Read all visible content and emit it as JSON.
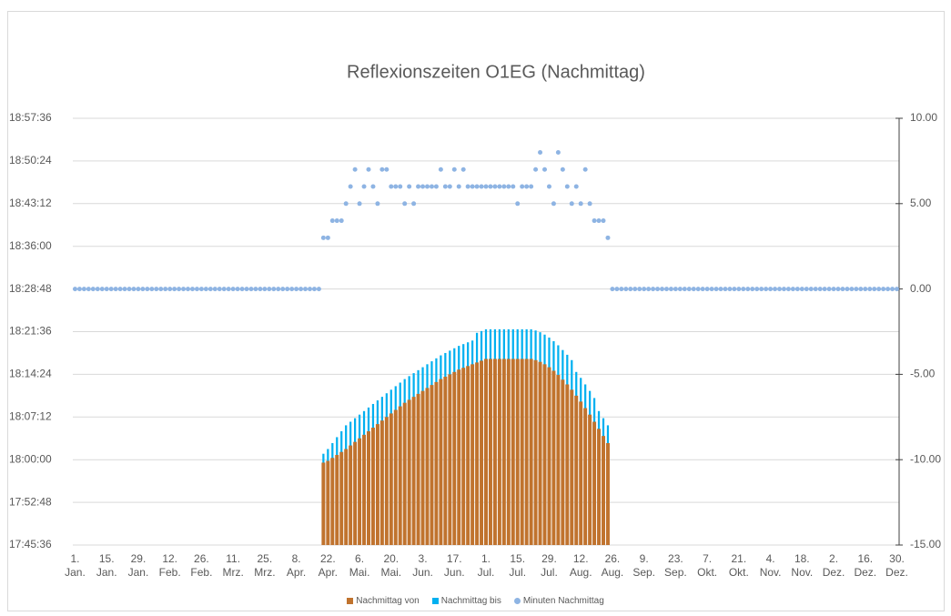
{
  "chart_data": {
    "type": "bar",
    "title": "Reflexionszeiten O1EG (Nachmittag)",
    "categories": [
      "1. Jan.",
      null,
      null,
      null,
      null,
      null,
      null,
      "15. Jan.",
      null,
      null,
      null,
      null,
      null,
      null,
      "29. Jan.",
      null,
      null,
      null,
      null,
      null,
      null,
      "12. Feb.",
      null,
      null,
      null,
      null,
      null,
      null,
      "26. Feb.",
      null,
      null,
      null,
      null,
      null,
      null,
      "11. Mrz.",
      null,
      null,
      null,
      null,
      null,
      null,
      "25. Mrz.",
      null,
      null,
      null,
      null,
      null,
      null,
      "8. Apr.",
      null,
      null,
      null,
      null,
      null,
      null,
      "22. Apr.",
      null,
      null,
      null,
      null,
      null,
      null,
      "6. Mai.",
      null,
      null,
      null,
      null,
      null,
      null,
      "20. Mai.",
      null,
      null,
      null,
      null,
      null,
      null,
      "3. Jun.",
      null,
      null,
      null,
      null,
      null,
      null,
      "17. Jun.",
      null,
      null,
      null,
      null,
      null,
      null,
      "1. Jul.",
      null,
      null,
      null,
      null,
      null,
      null,
      "15. Jul.",
      null,
      null,
      null,
      null,
      null,
      null,
      "29. Jul.",
      null,
      null,
      null,
      null,
      null,
      null,
      "12. Aug.",
      null,
      null,
      null,
      null,
      null,
      null,
      "26. Aug.",
      null,
      null,
      null,
      null,
      null,
      null,
      "9. Sep.",
      null,
      null,
      null,
      null,
      null,
      null,
      "23. Sep.",
      null,
      null,
      null,
      null,
      null,
      null,
      "7. Okt.",
      null,
      null,
      null,
      null,
      null,
      null,
      "21. Okt.",
      null,
      null,
      null,
      null,
      null,
      null,
      "4. Nov.",
      null,
      null,
      null,
      null,
      null,
      null,
      "18. Nov.",
      null,
      null,
      null,
      null,
      null,
      null,
      "2. Dez.",
      null,
      null,
      null,
      null,
      null,
      null,
      "16. Dez.",
      null,
      null,
      null,
      null,
      null,
      null,
      "30. Dez."
    ],
    "series": [
      {
        "name": "Nachmittag von",
        "type": "bar",
        "color": "#c0732e",
        "values": [
          null,
          null,
          null,
          null,
          null,
          null,
          null,
          null,
          null,
          null,
          null,
          null,
          null,
          null,
          null,
          null,
          null,
          null,
          null,
          null,
          null,
          null,
          null,
          null,
          null,
          null,
          null,
          null,
          null,
          null,
          null,
          null,
          null,
          null,
          null,
          null,
          null,
          null,
          null,
          null,
          null,
          null,
          null,
          null,
          null,
          null,
          null,
          null,
          null,
          null,
          null,
          null,
          null,
          null,
          null,
          1079.5,
          1079.8,
          1080.3,
          1080.8,
          1081.3,
          1081.8,
          1082.4,
          1083.0,
          1083.6,
          1084.2,
          1084.8,
          1085.4,
          1086.0,
          1086.6,
          1087.2,
          1087.8,
          1088.4,
          1089.0,
          1089.6,
          1090.1,
          1090.6,
          1091.1,
          1091.6,
          1092.1,
          1092.6,
          1093.1,
          1093.6,
          1094.0,
          1094.4,
          1094.8,
          1095.2,
          1095.5,
          1095.8,
          1096.1,
          1096.4,
          1096.7,
          1097.0,
          1097.0,
          1097.0,
          1097.0,
          1097.0,
          1097.0,
          1097.0,
          1097.0,
          1097.0,
          1097.0,
          1097.0,
          1096.8,
          1096.5,
          1096.1,
          1095.6,
          1095.0,
          1094.3,
          1093.5,
          1092.7,
          1091.8,
          1090.8,
          1089.8,
          1088.7,
          1087.6,
          1086.4,
          1085.2,
          1084.0,
          1082.8,
          null,
          null,
          null,
          null,
          null,
          null,
          null,
          null,
          null,
          null,
          null,
          null,
          null,
          null,
          null,
          null,
          null,
          null,
          null,
          null,
          null,
          null,
          null,
          null,
          null,
          null,
          null,
          null,
          null,
          null,
          null,
          null,
          null,
          null,
          null,
          null,
          null,
          null,
          null,
          null,
          null,
          null,
          null,
          null,
          null,
          null,
          null,
          null,
          null,
          null,
          null,
          null,
          null,
          null,
          null,
          null,
          null,
          null,
          null,
          null,
          null,
          null,
          null,
          null
        ]
      },
      {
        "name": "Nachmittag bis",
        "type": "bar",
        "color": "#00b0f0",
        "values": [
          null,
          null,
          null,
          null,
          null,
          null,
          null,
          null,
          null,
          null,
          null,
          null,
          null,
          null,
          null,
          null,
          null,
          null,
          null,
          null,
          null,
          null,
          null,
          null,
          null,
          null,
          null,
          null,
          null,
          null,
          null,
          null,
          null,
          null,
          null,
          null,
          null,
          null,
          null,
          null,
          null,
          null,
          null,
          null,
          null,
          null,
          null,
          null,
          null,
          null,
          null,
          null,
          null,
          null,
          null,
          1081.0,
          1081.8,
          1082.8,
          1083.8,
          1084.8,
          1085.8,
          1086.4,
          1087.0,
          1087.6,
          1088.2,
          1088.8,
          1089.4,
          1090.0,
          1090.6,
          1091.2,
          1091.8,
          1092.4,
          1093.0,
          1093.6,
          1094.1,
          1094.6,
          1095.1,
          1095.6,
          1096.1,
          1096.6,
          1097.1,
          1097.6,
          1098.0,
          1098.4,
          1098.8,
          1099.2,
          1099.5,
          1099.8,
          1100.1,
          1101.4,
          1101.7,
          1102.0,
          1102.0,
          1102.0,
          1102.0,
          1102.0,
          1102.0,
          1102.0,
          1102.0,
          1102.0,
          1102.0,
          1102.0,
          1101.8,
          1101.5,
          1101.1,
          1100.6,
          1100.0,
          1099.3,
          1098.5,
          1097.7,
          1096.8,
          1094.8,
          1093.8,
          1092.7,
          1091.6,
          1090.4,
          1088.2,
          1087.0,
          1085.8,
          null,
          null,
          null,
          null,
          null,
          null,
          null,
          null,
          null,
          null,
          null,
          null,
          null,
          null,
          null,
          null,
          null,
          null,
          null,
          null,
          null,
          null,
          null,
          null,
          null,
          null,
          null,
          null,
          null,
          null,
          null,
          null,
          null,
          null,
          null,
          null,
          null,
          null,
          null,
          null,
          null,
          null,
          null,
          null,
          null,
          null,
          null,
          null,
          null,
          null,
          null,
          null,
          null,
          null,
          null,
          null,
          null,
          null,
          null,
          null,
          null,
          null,
          null,
          null
        ]
      },
      {
        "name": "Minuten Nachmittag",
        "type": "scatter",
        "axis": "y2",
        "color": "#8eb4e3",
        "values": [
          0,
          0,
          0,
          0,
          0,
          0,
          0,
          0,
          0,
          0,
          0,
          0,
          0,
          0,
          0,
          0,
          0,
          0,
          0,
          0,
          0,
          0,
          0,
          0,
          0,
          0,
          0,
          0,
          0,
          0,
          0,
          0,
          0,
          0,
          0,
          0,
          0,
          0,
          0,
          0,
          0,
          0,
          0,
          0,
          0,
          0,
          0,
          0,
          0,
          0,
          0,
          0,
          0,
          0,
          0,
          3,
          3,
          4,
          4,
          4,
          5,
          6,
          7,
          5,
          6,
          7,
          6,
          5,
          7,
          7,
          6,
          6,
          6,
          5,
          6,
          5,
          6,
          6,
          6,
          6,
          6,
          7,
          6,
          6,
          7,
          6,
          7,
          6,
          6,
          6,
          6,
          6,
          6,
          6,
          6,
          6,
          6,
          6,
          5,
          6,
          6,
          6,
          7,
          8,
          7,
          6,
          5,
          8,
          7,
          6,
          5,
          6,
          5,
          7,
          5,
          4,
          4,
          4,
          3,
          0,
          0,
          0,
          0,
          0,
          0,
          0,
          0,
          0,
          0,
          0,
          0,
          0,
          0,
          0,
          0,
          0,
          0,
          0,
          0,
          0,
          0,
          0,
          0,
          0,
          0,
          0,
          0,
          0,
          0,
          0,
          0,
          0,
          0,
          0,
          0,
          0,
          0,
          0,
          0,
          0,
          0,
          0,
          0,
          0,
          0,
          0,
          0,
          0,
          0,
          0,
          0,
          0,
          0,
          0,
          0,
          0,
          0,
          0,
          0,
          0,
          0,
          0,
          0
        ]
      }
    ],
    "ylim": [
      1065.6,
      1137.6
    ],
    "yticks": [
      {
        "value": 1065.6,
        "label": "17:45:36"
      },
      {
        "value": 1072.8,
        "label": "17:52:48"
      },
      {
        "value": 1080,
        "label": "18:00:00"
      },
      {
        "value": 1087.2,
        "label": "18:07:12"
      },
      {
        "value": 1094.4,
        "label": "18:14:24"
      },
      {
        "value": 1101.6,
        "label": "18:21:36"
      },
      {
        "value": 1108.8,
        "label": "18:28:48"
      },
      {
        "value": 1116,
        "label": "18:36:00"
      },
      {
        "value": 1123.2,
        "label": "18:43:12"
      },
      {
        "value": 1130.4,
        "label": "18:50:24"
      },
      {
        "value": 1137.6,
        "label": "18:57:36"
      }
    ],
    "y2lim": [
      -15,
      10
    ],
    "y2ticks": [
      {
        "value": -15,
        "label": "-15.00"
      },
      {
        "value": -10,
        "label": "-10.00"
      },
      {
        "value": -5,
        "label": "-5.00"
      },
      {
        "value": 0,
        "label": "0.00"
      },
      {
        "value": 5,
        "label": "5.00"
      },
      {
        "value": 10,
        "label": "10.00"
      }
    ],
    "grid": true,
    "legend": "bottom"
  }
}
